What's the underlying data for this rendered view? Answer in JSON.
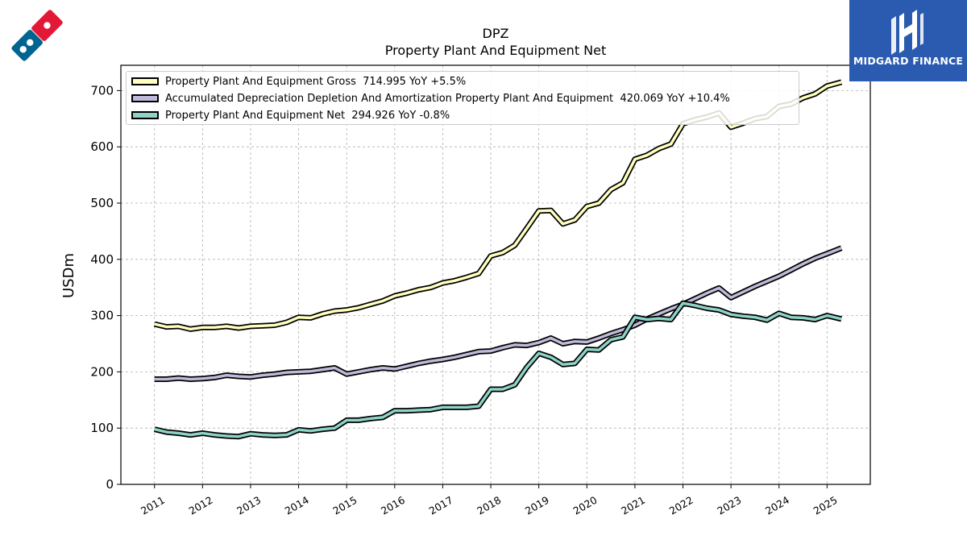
{
  "brand": {
    "company_logo_icon": "dominos-domino-logo",
    "publisher_icon": "midgard-finance-logo",
    "publisher_name": "MIDGARD FINANCE",
    "publisher_color": "#2a5bb0"
  },
  "chart_data": {
    "type": "line",
    "title": "DPZ",
    "subtitle": "Property Plant And Equipment Net",
    "xlabel": "",
    "ylabel": "USDm",
    "ylim": [
      0,
      745
    ],
    "yticks": [
      0,
      100,
      200,
      300,
      400,
      500,
      600,
      700
    ],
    "xlim": [
      2010.3,
      2025.9
    ],
    "xticks": [
      2011,
      2012,
      2013,
      2014,
      2015,
      2016,
      2017,
      2018,
      2019,
      2020,
      2021,
      2022,
      2023,
      2024,
      2025
    ],
    "xtick_labels": [
      "2011",
      "2012",
      "2013",
      "2014",
      "2015",
      "2016",
      "2017",
      "2018",
      "2019",
      "2020",
      "2021",
      "2022",
      "2023",
      "2024",
      "2025"
    ],
    "grid": true,
    "legend_position": "top-left",
    "series": [
      {
        "name": "Property Plant And Equipment Gross",
        "legend": "Property Plant And Equipment Gross  714.995 YoY +5.5%",
        "color": "#ffffbf",
        "x": [
          2011.0,
          2011.25,
          2011.5,
          2011.75,
          2012.0,
          2012.25,
          2012.5,
          2012.75,
          2013.0,
          2013.25,
          2013.5,
          2013.75,
          2014.0,
          2014.25,
          2014.5,
          2014.75,
          2015.0,
          2015.25,
          2015.5,
          2015.75,
          2016.0,
          2016.25,
          2016.5,
          2016.75,
          2017.0,
          2017.25,
          2017.5,
          2017.75,
          2018.0,
          2018.25,
          2018.5,
          2018.75,
          2019.0,
          2019.25,
          2019.5,
          2019.75,
          2020.0,
          2020.25,
          2020.5,
          2020.75,
          2021.0,
          2021.25,
          2021.5,
          2021.75,
          2022.0,
          2022.25,
          2022.5,
          2022.75,
          2023.0,
          2023.25,
          2023.5,
          2023.75,
          2024.0,
          2024.25,
          2024.5,
          2024.75,
          2025.0,
          2025.3
        ],
        "values": [
          285,
          280,
          281,
          276,
          279,
          279,
          281,
          278,
          281,
          282,
          283,
          288,
          297,
          296,
          303,
          308,
          310,
          314,
          320,
          326,
          335,
          340,
          346,
          350,
          358,
          362,
          368,
          375,
          406,
          412,
          425,
          455,
          486,
          487,
          463,
          470,
          494,
          500,
          524,
          536,
          578,
          585,
          597,
          605,
          641,
          648,
          653,
          660,
          635,
          642,
          650,
          654,
          672,
          676,
          687,
          694,
          708,
          715
        ]
      },
      {
        "name": "Accumulated Depreciation Depletion And Amortization Property Plant And Equipment",
        "legend": "Accumulated Depreciation Depletion And Amortization Property Plant And Equipment  420.069 YoY +10.4%",
        "color": "#bebada",
        "x": [
          2011.0,
          2011.25,
          2011.5,
          2011.75,
          2012.0,
          2012.25,
          2012.5,
          2012.75,
          2013.0,
          2013.25,
          2013.5,
          2013.75,
          2014.0,
          2014.25,
          2014.5,
          2014.75,
          2015.0,
          2015.25,
          2015.5,
          2015.75,
          2016.0,
          2016.25,
          2016.5,
          2016.75,
          2017.0,
          2017.25,
          2017.5,
          2017.75,
          2018.0,
          2018.25,
          2018.5,
          2018.75,
          2019.0,
          2019.25,
          2019.5,
          2019.75,
          2020.0,
          2020.25,
          2020.5,
          2020.75,
          2021.0,
          2021.25,
          2021.5,
          2021.75,
          2022.0,
          2022.25,
          2022.5,
          2022.75,
          2023.0,
          2023.25,
          2023.5,
          2023.75,
          2024.0,
          2024.25,
          2024.5,
          2024.75,
          2025.0,
          2025.3
        ],
        "values": [
          187,
          187,
          189,
          187,
          188,
          190,
          194,
          192,
          191,
          194,
          196,
          199,
          200,
          201,
          204,
          207,
          196,
          200,
          204,
          207,
          205,
          210,
          215,
          219,
          222,
          226,
          231,
          236,
          237,
          243,
          248,
          247,
          252,
          260,
          250,
          254,
          253,
          260,
          268,
          275,
          283,
          294,
          303,
          312,
          320,
          330,
          340,
          349,
          332,
          342,
          352,
          361,
          370,
          381,
          392,
          402,
          410,
          420
        ]
      },
      {
        "name": "Property Plant And Equipment Net",
        "legend": "Property Plant And Equipment Net  294.926 YoY -0.8%",
        "color": "#8dd3c7",
        "x": [
          2011.0,
          2011.25,
          2011.5,
          2011.75,
          2012.0,
          2012.25,
          2012.5,
          2012.75,
          2013.0,
          2013.25,
          2013.5,
          2013.75,
          2014.0,
          2014.25,
          2014.5,
          2014.75,
          2015.0,
          2015.25,
          2015.5,
          2015.75,
          2016.0,
          2016.25,
          2016.5,
          2016.75,
          2017.0,
          2017.25,
          2017.5,
          2017.75,
          2018.0,
          2018.25,
          2018.5,
          2018.75,
          2019.0,
          2019.25,
          2019.5,
          2019.75,
          2020.0,
          2020.25,
          2020.5,
          2020.75,
          2021.0,
          2021.25,
          2021.5,
          2021.75,
          2022.0,
          2022.25,
          2022.5,
          2022.75,
          2023.0,
          2023.25,
          2023.5,
          2023.75,
          2024.0,
          2024.25,
          2024.5,
          2024.75,
          2025.0,
          2025.3
        ],
        "values": [
          98,
          93,
          91,
          88,
          91,
          88,
          86,
          85,
          90,
          88,
          87,
          88,
          97,
          95,
          98,
          100,
          114,
          114,
          117,
          119,
          131,
          131,
          132,
          133,
          137,
          137,
          137,
          139,
          169,
          169,
          177,
          208,
          233,
          226,
          213,
          215,
          240,
          239,
          257,
          262,
          297,
          293,
          295,
          293,
          322,
          318,
          313,
          310,
          302,
          299,
          297,
          292,
          304,
          297,
          296,
          293,
          300,
          294
        ]
      }
    ]
  }
}
